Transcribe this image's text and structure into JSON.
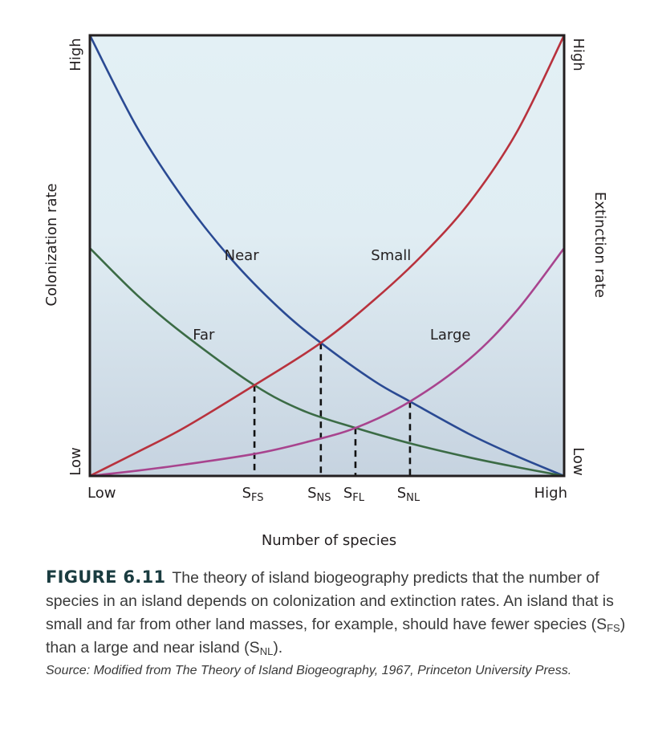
{
  "chart_data": {
    "type": "line",
    "title": "",
    "xlabel": "Number of species",
    "ylabel_left": "Colonization rate",
    "ylabel_right": "Extinction rate",
    "xlim": [
      0,
      1
    ],
    "ylim": [
      0,
      1
    ],
    "grid": false,
    "x_ticks": [
      {
        "main": "Low",
        "sub": "",
        "x": 0
      },
      {
        "main": "S",
        "sub": "FS",
        "x": 0.347
      },
      {
        "main": "S",
        "sub": "NS",
        "x": 0.487
      },
      {
        "main": "S",
        "sub": "FL",
        "x": 0.56
      },
      {
        "main": "S",
        "sub": "NL",
        "x": 0.675
      },
      {
        "main": "High",
        "sub": "",
        "x": 1
      }
    ],
    "y_left_ticks": {
      "low": "Low",
      "high": "High"
    },
    "y_right_ticks": {
      "low": "Low",
      "high": "High"
    },
    "series": [
      {
        "name": "Near",
        "kind": "colonization",
        "color": "#2a4a93",
        "x": [
          0,
          0.1,
          0.2,
          0.3,
          0.4,
          0.487,
          0.6,
          0.675,
          0.8,
          0.9,
          1
        ],
        "y": [
          1.0,
          0.79,
          0.625,
          0.49,
          0.38,
          0.302,
          0.215,
          0.169,
          0.095,
          0.045,
          0
        ]
      },
      {
        "name": "Far",
        "kind": "colonization",
        "color": "#3b6b45",
        "x": [
          0,
          0.1,
          0.2,
          0.347,
          0.45,
          0.56,
          0.675,
          0.8,
          0.9,
          1
        ],
        "y": [
          0.517,
          0.41,
          0.32,
          0.206,
          0.148,
          0.109,
          0.074,
          0.042,
          0.02,
          0
        ]
      },
      {
        "name": "Small",
        "kind": "extinction",
        "color": "#b8323d",
        "x": [
          0,
          0.1,
          0.2,
          0.347,
          0.487,
          0.6,
          0.7,
          0.8,
          0.9,
          1
        ],
        "y": [
          0,
          0.054,
          0.11,
          0.206,
          0.302,
          0.4,
          0.5,
          0.62,
          0.78,
          1.0
        ]
      },
      {
        "name": "Large",
        "kind": "extinction",
        "color": "#a8448e",
        "x": [
          0,
          0.1,
          0.2,
          0.347,
          0.45,
          0.56,
          0.675,
          0.8,
          0.9,
          1
        ],
        "y": [
          0,
          0.012,
          0.026,
          0.05,
          0.075,
          0.109,
          0.169,
          0.265,
          0.375,
          0.517
        ]
      }
    ],
    "equilibria": [
      {
        "label": "SFS",
        "x": 0.347,
        "y": 0.206
      },
      {
        "label": "SNS",
        "x": 0.487,
        "y": 0.302
      },
      {
        "label": "SFL",
        "x": 0.56,
        "y": 0.109
      },
      {
        "label": "SNL",
        "x": 0.675,
        "y": 0.169
      }
    ],
    "annotations": [
      {
        "text": "Near",
        "x": 0.32,
        "y": 0.49
      },
      {
        "text": "Small",
        "x": 0.635,
        "y": 0.49
      },
      {
        "text": "Far",
        "x": 0.24,
        "y": 0.31
      },
      {
        "text": "Large",
        "x": 0.76,
        "y": 0.31
      }
    ],
    "background": {
      "top": "#e3f0f5",
      "bottom": "#c6d3e0"
    }
  },
  "caption": {
    "figure_label": "FIGURE 6.11",
    "text_1": "The theory of island biogeography predicts that the number of species in an island depends on colonization and extinction rates. An island that is small and far from other land masses, for example, should have fewer species (",
    "sub_1_main": "S",
    "sub_1": "FS",
    "text_2": ") than a large and near island (",
    "sub_2_main": "S",
    "sub_2": "NL",
    "text_3": ").",
    "source": "Source: Modified from The Theory of Island Biogeography, 1967, Princeton University Press."
  }
}
